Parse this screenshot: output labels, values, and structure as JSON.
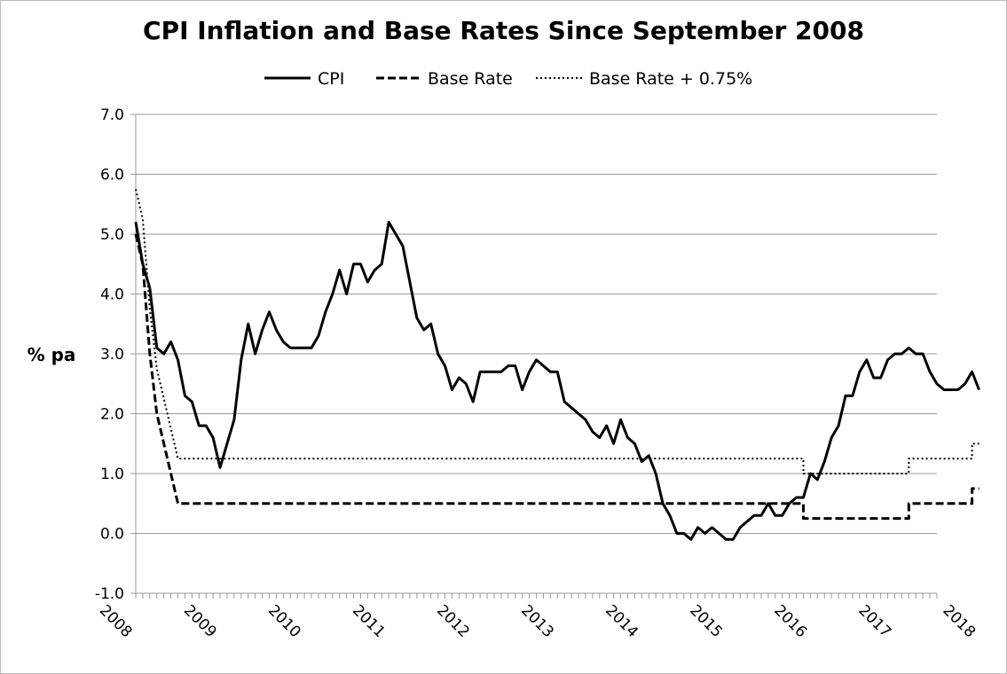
{
  "chart_data": {
    "type": "line",
    "title": "CPI Inflation and Base Rates Since September 2008",
    "ylabel": "% pa",
    "xlabel": "",
    "ylim": [
      -1.0,
      7.0
    ],
    "y_ticks": [
      "7.0",
      "6.0",
      "5.0",
      "4.0",
      "3.0",
      "2.0",
      "1.0",
      "0.0",
      "-1.0"
    ],
    "x_ticks": [
      "2008",
      "2009",
      "2010",
      "2011",
      "2012",
      "2013",
      "2014",
      "2015",
      "2016",
      "2017",
      "2018"
    ],
    "x_range": [
      "2008-09",
      "2018-03"
    ],
    "grid": "horizontal",
    "legend_position": "top",
    "series": [
      {
        "name": "CPI",
        "style": "solid",
        "color": "#000000",
        "points": [
          [
            "2008-09",
            5.2
          ],
          [
            "2008-10",
            4.5
          ],
          [
            "2008-11",
            4.1
          ],
          [
            "2008-12",
            3.1
          ],
          [
            "2009-01",
            3.0
          ],
          [
            "2009-02",
            3.2
          ],
          [
            "2009-03",
            2.9
          ],
          [
            "2009-04",
            2.3
          ],
          [
            "2009-05",
            2.2
          ],
          [
            "2009-06",
            1.8
          ],
          [
            "2009-07",
            1.8
          ],
          [
            "2009-08",
            1.6
          ],
          [
            "2009-09",
            1.1
          ],
          [
            "2009-10",
            1.5
          ],
          [
            "2009-11",
            1.9
          ],
          [
            "2009-12",
            2.9
          ],
          [
            "2010-01",
            3.5
          ],
          [
            "2010-02",
            3.0
          ],
          [
            "2010-03",
            3.4
          ],
          [
            "2010-04",
            3.7
          ],
          [
            "2010-05",
            3.4
          ],
          [
            "2010-06",
            3.2
          ],
          [
            "2010-07",
            3.1
          ],
          [
            "2010-08",
            3.1
          ],
          [
            "2010-09",
            3.1
          ],
          [
            "2010-10",
            3.1
          ],
          [
            "2010-11",
            3.3
          ],
          [
            "2010-12",
            3.7
          ],
          [
            "2011-01",
            4.0
          ],
          [
            "2011-02",
            4.4
          ],
          [
            "2011-03",
            4.0
          ],
          [
            "2011-04",
            4.5
          ],
          [
            "2011-05",
            4.5
          ],
          [
            "2011-06",
            4.2
          ],
          [
            "2011-07",
            4.4
          ],
          [
            "2011-08",
            4.5
          ],
          [
            "2011-09",
            5.2
          ],
          [
            "2011-10",
            5.0
          ],
          [
            "2011-11",
            4.8
          ],
          [
            "2011-12",
            4.2
          ],
          [
            "2012-01",
            3.6
          ],
          [
            "2012-02",
            3.4
          ],
          [
            "2012-03",
            3.5
          ],
          [
            "2012-04",
            3.0
          ],
          [
            "2012-05",
            2.8
          ],
          [
            "2012-06",
            2.4
          ],
          [
            "2012-07",
            2.6
          ],
          [
            "2012-08",
            2.5
          ],
          [
            "2012-09",
            2.2
          ],
          [
            "2012-10",
            2.7
          ],
          [
            "2012-11",
            2.7
          ],
          [
            "2012-12",
            2.7
          ],
          [
            "2013-01",
            2.7
          ],
          [
            "2013-02",
            2.8
          ],
          [
            "2013-03",
            2.8
          ],
          [
            "2013-04",
            2.4
          ],
          [
            "2013-05",
            2.7
          ],
          [
            "2013-06",
            2.9
          ],
          [
            "2013-07",
            2.8
          ],
          [
            "2013-08",
            2.7
          ],
          [
            "2013-09",
            2.7
          ],
          [
            "2013-10",
            2.2
          ],
          [
            "2013-11",
            2.1
          ],
          [
            "2013-12",
            2.0
          ],
          [
            "2014-01",
            1.9
          ],
          [
            "2014-02",
            1.7
          ],
          [
            "2014-03",
            1.6
          ],
          [
            "2014-04",
            1.8
          ],
          [
            "2014-05",
            1.5
          ],
          [
            "2014-06",
            1.9
          ],
          [
            "2014-07",
            1.6
          ],
          [
            "2014-08",
            1.5
          ],
          [
            "2014-09",
            1.2
          ],
          [
            "2014-10",
            1.3
          ],
          [
            "2014-11",
            1.0
          ],
          [
            "2014-12",
            0.5
          ],
          [
            "2015-01",
            0.3
          ],
          [
            "2015-02",
            0.0
          ],
          [
            "2015-03",
            0.0
          ],
          [
            "2015-04",
            -0.1
          ],
          [
            "2015-05",
            0.1
          ],
          [
            "2015-06",
            0.0
          ],
          [
            "2015-07",
            0.1
          ],
          [
            "2015-08",
            0.0
          ],
          [
            "2015-09",
            -0.1
          ],
          [
            "2015-10",
            -0.1
          ],
          [
            "2015-11",
            0.1
          ],
          [
            "2015-12",
            0.2
          ],
          [
            "2016-01",
            0.3
          ],
          [
            "2016-02",
            0.3
          ],
          [
            "2016-03",
            0.5
          ],
          [
            "2016-04",
            0.3
          ],
          [
            "2016-05",
            0.3
          ],
          [
            "2016-06",
            0.5
          ],
          [
            "2016-07",
            0.6
          ],
          [
            "2016-08",
            0.6
          ],
          [
            "2016-09",
            1.0
          ],
          [
            "2016-10",
            0.9
          ],
          [
            "2016-11",
            1.2
          ],
          [
            "2016-12",
            1.6
          ],
          [
            "2017-01",
            1.8
          ],
          [
            "2017-02",
            2.3
          ],
          [
            "2017-03",
            2.3
          ],
          [
            "2017-04",
            2.7
          ],
          [
            "2017-05",
            2.9
          ],
          [
            "2017-06",
            2.6
          ],
          [
            "2017-07",
            2.6
          ],
          [
            "2017-08",
            2.9
          ],
          [
            "2017-09",
            3.0
          ],
          [
            "2017-10",
            3.0
          ],
          [
            "2017-11",
            3.1
          ],
          [
            "2017-12",
            3.0
          ],
          [
            "2018-01",
            3.0
          ],
          [
            "2018-02",
            2.7
          ],
          [
            "2018-03",
            2.5
          ],
          [
            "2018-04",
            2.4
          ],
          [
            "2018-05",
            2.4
          ],
          [
            "2018-06",
            2.4
          ],
          [
            "2018-07",
            2.5
          ],
          [
            "2018-08",
            2.7
          ],
          [
            "2018-09",
            2.4
          ]
        ]
      },
      {
        "name": "Base Rate",
        "style": "dashed",
        "color": "#000000",
        "points": [
          [
            "2008-09",
            5.0
          ],
          [
            "2008-10",
            4.5
          ],
          [
            "2008-11",
            3.0
          ],
          [
            "2008-12",
            2.0
          ],
          [
            "2009-01",
            1.5
          ],
          [
            "2009-02",
            1.0
          ],
          [
            "2009-03",
            0.5
          ],
          [
            "2016-08",
            0.5
          ],
          [
            "2016-08",
            0.25
          ],
          [
            "2017-11",
            0.25
          ],
          [
            "2017-11",
            0.5
          ],
          [
            "2018-08",
            0.5
          ],
          [
            "2018-08",
            0.75
          ],
          [
            "2018-09",
            0.75
          ]
        ]
      },
      {
        "name": "Base Rate + 0.75%",
        "style": "dotted",
        "color": "#000000",
        "points": [
          [
            "2008-09",
            5.75
          ],
          [
            "2008-10",
            5.25
          ],
          [
            "2008-11",
            3.75
          ],
          [
            "2008-12",
            2.75
          ],
          [
            "2009-01",
            2.25
          ],
          [
            "2009-02",
            1.75
          ],
          [
            "2009-03",
            1.25
          ],
          [
            "2016-08",
            1.25
          ],
          [
            "2016-08",
            1.0
          ],
          [
            "2017-11",
            1.0
          ],
          [
            "2017-11",
            1.25
          ],
          [
            "2018-08",
            1.25
          ],
          [
            "2018-08",
            1.5
          ],
          [
            "2018-09",
            1.5
          ]
        ]
      }
    ]
  }
}
